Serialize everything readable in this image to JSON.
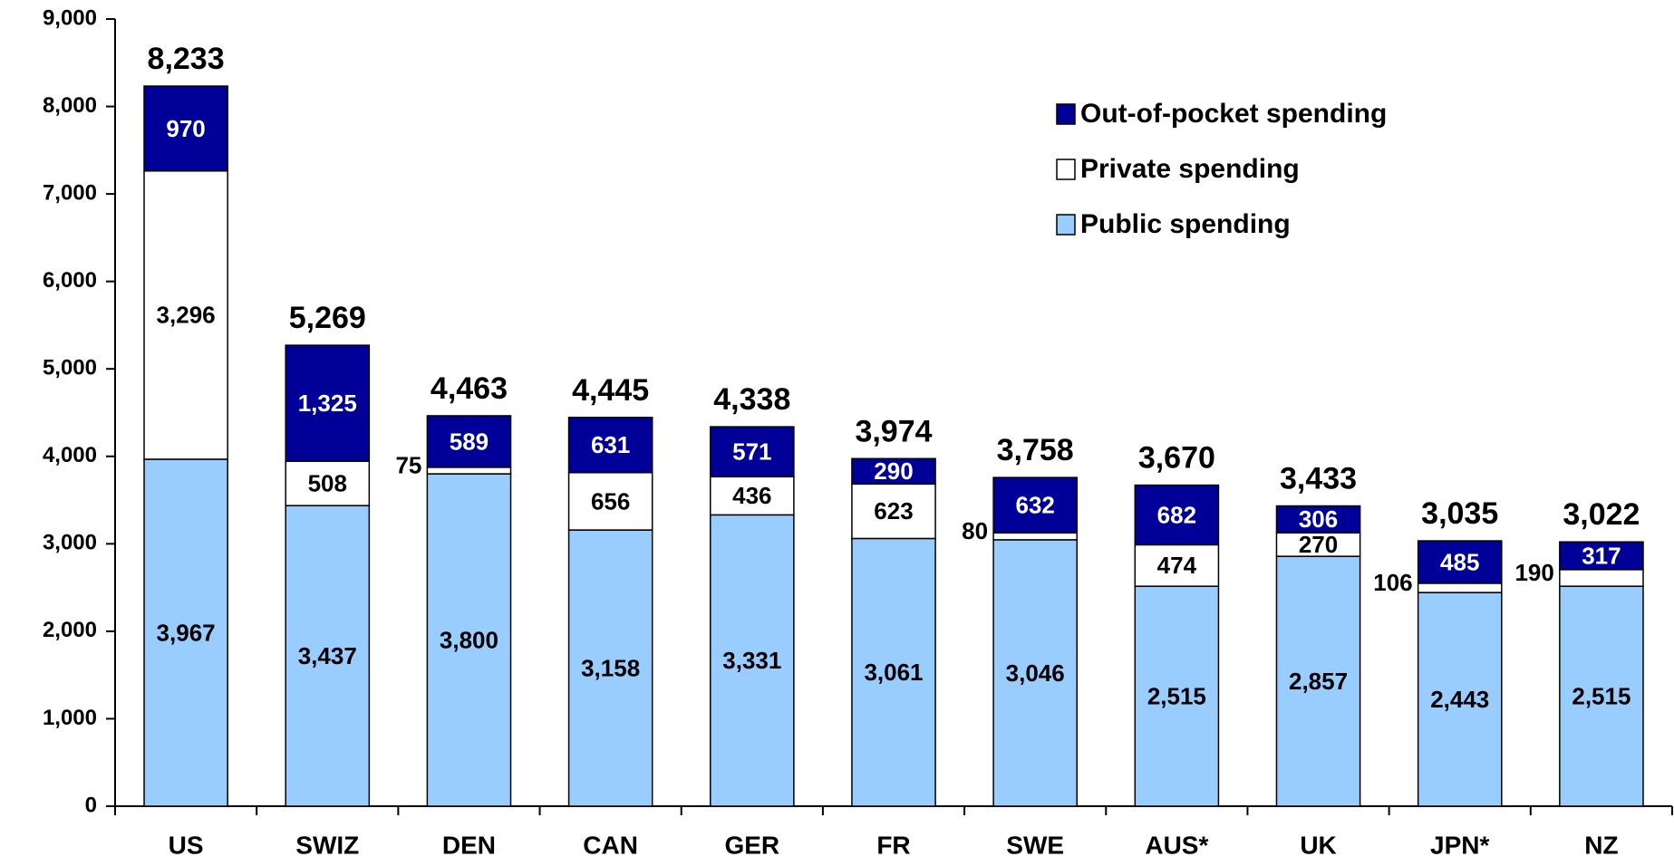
{
  "chart_data": {
    "type": "stacked-bar",
    "categories": [
      "US",
      "SWIZ",
      "DEN",
      "CAN",
      "GER",
      "FR",
      "SWE",
      "AUS*",
      "UK",
      "JPN*",
      "NZ"
    ],
    "series": [
      {
        "name": "Public spending",
        "color": "#99ccff",
        "label_color": "#000000",
        "values": [
          3967,
          3437,
          3800,
          3158,
          3331,
          3061,
          3046,
          2515,
          2857,
          2443,
          2515
        ],
        "value_labels": [
          "3,967",
          "3,437",
          "3,800",
          "3,158",
          "3,331",
          "3,061",
          "3,046",
          "2,515",
          "2,857",
          "2,443",
          "2,515"
        ]
      },
      {
        "name": "Private spending",
        "color": "#ffffff",
        "label_color": "#000000",
        "values": [
          3296,
          508,
          75,
          656,
          436,
          623,
          80,
          474,
          270,
          106,
          190
        ],
        "value_labels": [
          "3,296",
          "508",
          "75",
          "656",
          "436",
          "623",
          "80",
          "474",
          "270",
          "106",
          "190"
        ]
      },
      {
        "name": "Out-of-pocket spending",
        "color": "#000099",
        "label_color": "#ffffff",
        "values": [
          970,
          1325,
          589,
          631,
          571,
          290,
          632,
          682,
          306,
          485,
          317
        ],
        "value_labels": [
          "970",
          "1,325",
          "589",
          "631",
          "571",
          "290",
          "632",
          "682",
          "306",
          "485",
          "317"
        ]
      }
    ],
    "totals": [
      8233,
      5269,
      4463,
      4445,
      4338,
      3974,
      3758,
      3670,
      3433,
      3035,
      3022
    ],
    "total_labels": [
      "8,233",
      "5,269",
      "4,463",
      "4,445",
      "4,338",
      "3,974",
      "3,758",
      "3,670",
      "3,433",
      "3,035",
      "3,022"
    ],
    "ylim": [
      0,
      9000
    ],
    "yticks": [
      0,
      {
        "value": 1000,
        "label": "1,000"
      },
      {
        "value": 2000,
        "label": "2,000"
      },
      {
        "value": 3000,
        "label": "3,000"
      },
      {
        "value": 4000,
        "label": "4,000"
      },
      {
        "value": 5000,
        "label": "5,000"
      },
      {
        "value": 6000,
        "label": "6,000"
      },
      {
        "value": 7000,
        "label": "7,000"
      },
      {
        "value": 8000,
        "label": "8,000"
      },
      {
        "value": 9000,
        "label": "9,000"
      }
    ],
    "grid": false,
    "legend": "upper right"
  }
}
